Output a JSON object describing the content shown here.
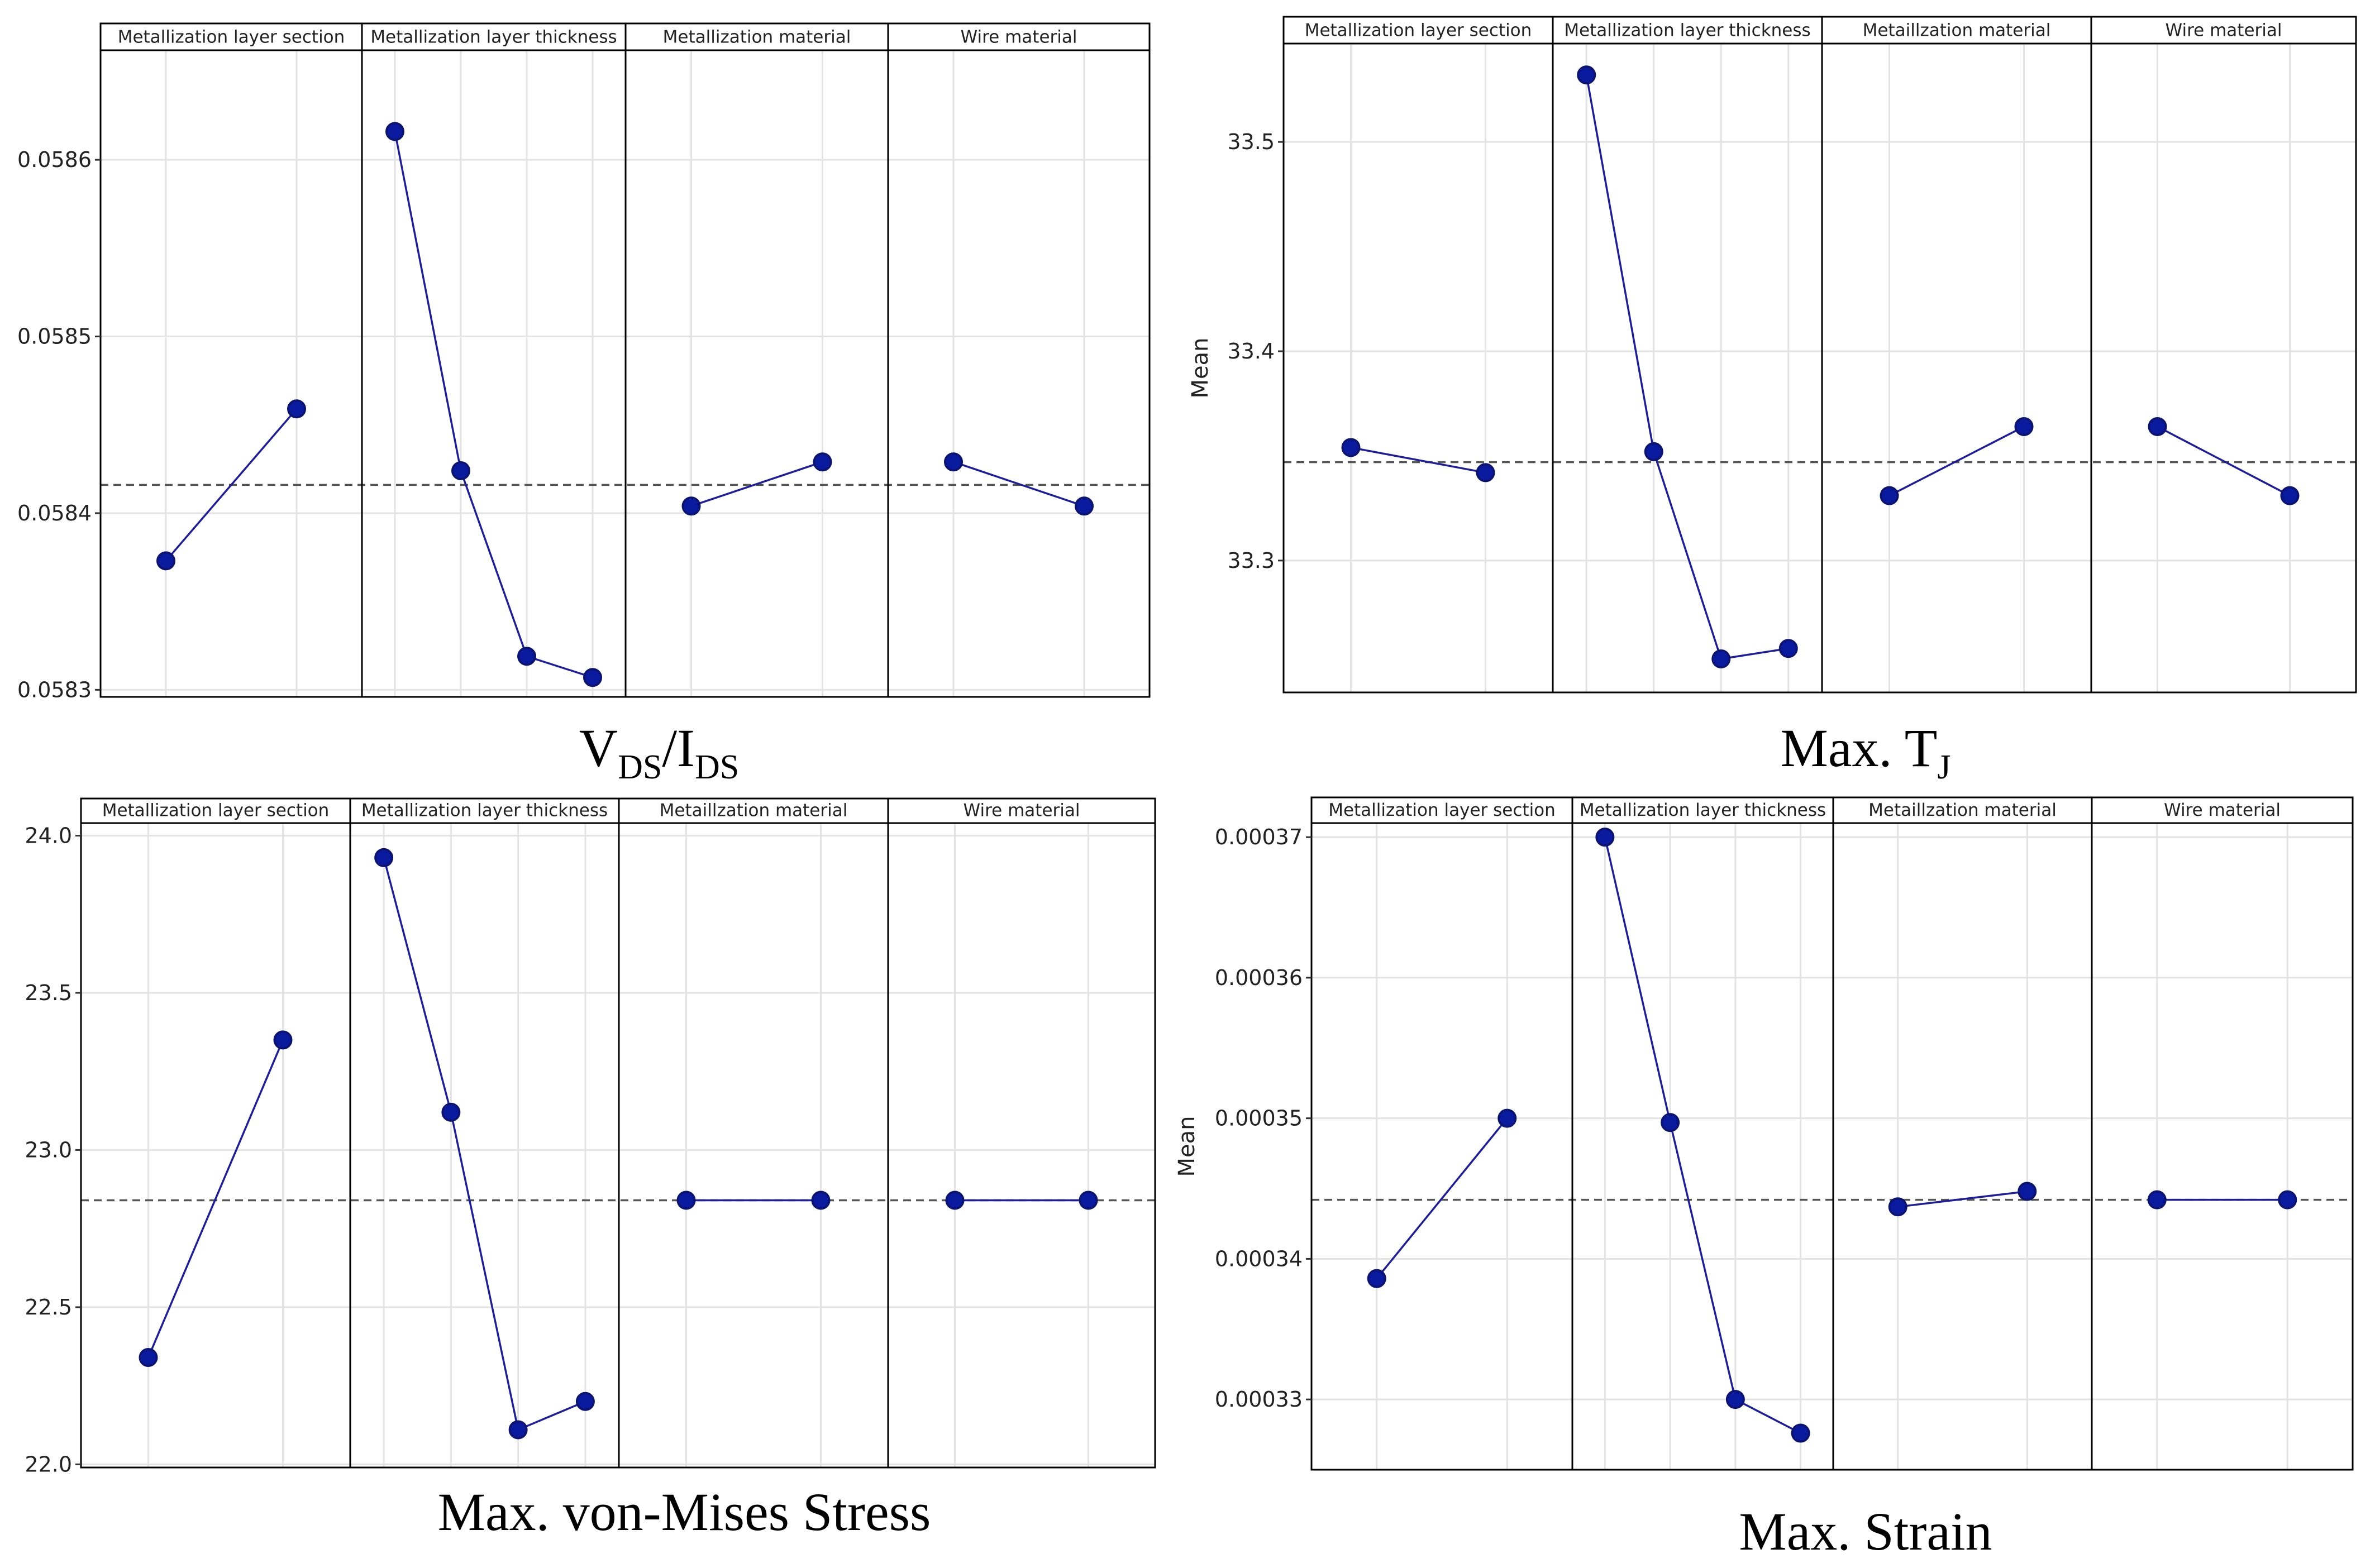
{
  "colors": {
    "series": "#1f1f8f",
    "marker_fill": "#0a1a9e",
    "marker_stroke": "#0c1470",
    "grid": "#e3e3e3",
    "reference": "#555555"
  },
  "chart_data": [
    {
      "type": "line",
      "title": "V_DS/I_DS",
      "caption": {
        "main1": "V",
        "sub1": "DS",
        "main2": "/I",
        "sub2": "DS"
      },
      "ylabel": "",
      "ylim": [
        0.058296,
        0.058662
      ],
      "yticks": [
        0.0583,
        0.0584,
        0.0585,
        0.0586
      ],
      "ytick_labels": [
        "0.0583",
        "0.0584",
        "0.0585",
        "0.0586"
      ],
      "overall_mean": 0.058416,
      "facets": [
        {
          "label": "Metallization layer section",
          "values": [
            0.058373,
            0.058459
          ]
        },
        {
          "label": "Metallization layer thickness",
          "values": [
            0.058616,
            0.058424,
            0.058319,
            0.058307
          ]
        },
        {
          "label": "Metallization material",
          "values": [
            0.058404,
            0.058429
          ]
        },
        {
          "label": "Wire material",
          "values": [
            0.058429,
            0.058404
          ]
        }
      ]
    },
    {
      "type": "line",
      "title": "Max. T_J",
      "caption": {
        "main1": "Max. T",
        "sub1": "J",
        "main2": "",
        "sub2": ""
      },
      "ylabel": "Mean",
      "ylim": [
        33.237,
        33.547
      ],
      "yticks": [
        33.3,
        33.4,
        33.5
      ],
      "ytick_labels": [
        "33.3",
        "33.4",
        "33.5"
      ],
      "overall_mean": 33.347,
      "facets": [
        {
          "label": "Metallization layer section",
          "values": [
            33.354,
            33.342
          ]
        },
        {
          "label": "Metallization layer thickness",
          "values": [
            33.532,
            33.352,
            33.253,
            33.258
          ]
        },
        {
          "label": "Metaillzation material",
          "values": [
            33.331,
            33.364
          ]
        },
        {
          "label": "Wire material",
          "values": [
            33.364,
            33.331
          ]
        }
      ]
    },
    {
      "type": "line",
      "title": "Max. von-Mises Stress",
      "caption": {
        "main1": "Max. von-Mises Stress",
        "sub1": "",
        "main2": "",
        "sub2": ""
      },
      "ylabel": "",
      "ylim": [
        21.99,
        24.04
      ],
      "yticks": [
        22.0,
        22.5,
        23.0,
        23.5,
        24.0
      ],
      "ytick_labels": [
        "22.0",
        "22.5",
        "23.0",
        "23.5",
        "24.0"
      ],
      "overall_mean": 22.84,
      "facets": [
        {
          "label": "Metallization layer section",
          "values": [
            22.34,
            23.35
          ]
        },
        {
          "label": "Metallization layer thickness",
          "values": [
            23.93,
            23.12,
            22.11,
            22.2
          ]
        },
        {
          "label": "Metaillzation material",
          "values": [
            22.84,
            22.84
          ]
        },
        {
          "label": "Wire material",
          "values": [
            22.84,
            22.84
          ]
        }
      ]
    },
    {
      "type": "line",
      "title": "Max. Strain",
      "caption": {
        "main1": "Max. Strain",
        "sub1": "",
        "main2": "",
        "sub2": ""
      },
      "ylabel": "Mean",
      "ylim": [
        0.000325,
        0.000371
      ],
      "yticks": [
        0.00033,
        0.00034,
        0.00035,
        0.00036,
        0.00037
      ],
      "ytick_labels": [
        "0.00033",
        "0.00034",
        "0.00035",
        "0.00036",
        "0.00037"
      ],
      "overall_mean": 0.0003442,
      "facets": [
        {
          "label": "Metallization layer section",
          "values": [
            0.0003386,
            0.00035
          ]
        },
        {
          "label": "Metallization layer thickness",
          "values": [
            0.00037,
            0.0003497,
            0.00033,
            0.0003276
          ]
        },
        {
          "label": "Metaillzation material",
          "values": [
            0.0003437,
            0.0003448
          ]
        },
        {
          "label": "Wire material",
          "values": [
            0.0003442,
            0.0003442
          ]
        }
      ]
    }
  ]
}
